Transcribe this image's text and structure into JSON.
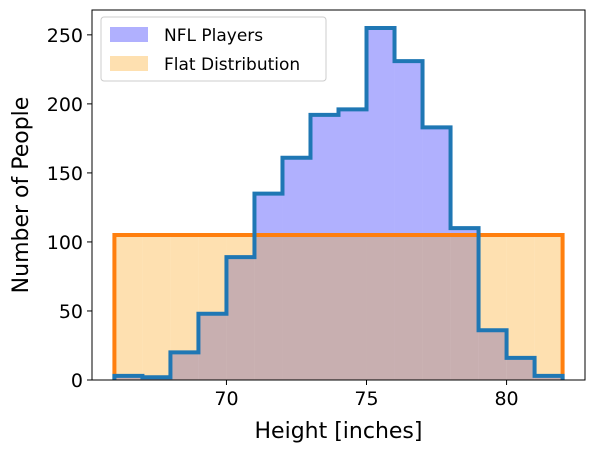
{
  "chart_data": {
    "type": "bar",
    "title": "",
    "xlabel": "Height [inches]",
    "ylabel": "Number of People",
    "xlim": [
      65.2,
      82.8
    ],
    "ylim": [
      0,
      268
    ],
    "xticks": [
      70,
      75,
      80
    ],
    "yticks": [
      0,
      50,
      100,
      150,
      200,
      250
    ],
    "grid": false,
    "legend_position": "top-left",
    "bin_edges": [
      66,
      67,
      68,
      69,
      70,
      71,
      72,
      73,
      74,
      75,
      76,
      77,
      78,
      79,
      80,
      81,
      82
    ],
    "series": [
      {
        "name": "NFL Players",
        "values": [
          3,
          2,
          20,
          48,
          89,
          135,
          161,
          192,
          196,
          255,
          231,
          183,
          110,
          36,
          16,
          3
        ],
        "fill_color": "#b0b0fe",
        "edge_color": "#1f77b4"
      },
      {
        "name": "Flat Distribution",
        "values": [
          105,
          105,
          105,
          105,
          105,
          105,
          105,
          105,
          105,
          105,
          105,
          105,
          105,
          105,
          105,
          105
        ],
        "fill_color": "#fee0b0",
        "edge_color": "#ff7f0e"
      }
    ],
    "overlap_color": "#c8afb0"
  }
}
